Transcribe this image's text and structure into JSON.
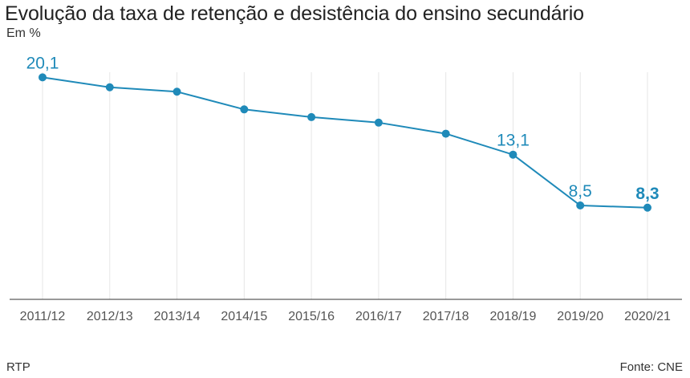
{
  "header": {
    "title": "Evolução da taxa de retenção e desistência do ensino secundário",
    "subtitle": "Em %"
  },
  "footer": {
    "left": "RTP",
    "right": "Fonte: CNE"
  },
  "colors": {
    "line": "#1f8ab9",
    "grid": "#e6e6e6",
    "axis": "#333333"
  },
  "chart_data": {
    "type": "line",
    "title": "Evolução da taxa de retenção e desistência do ensino secundário",
    "subtitle": "Em %",
    "categories": [
      "2011/12",
      "2012/13",
      "2013/14",
      "2014/15",
      "2015/16",
      "2016/17",
      "2017/18",
      "2018/19",
      "2019/20",
      "2020/21"
    ],
    "series": [
      {
        "values": [
          20.1,
          19.2,
          18.8,
          17.2,
          16.5,
          16.0,
          15.0,
          13.1,
          8.5,
          8.3
        ]
      }
    ],
    "labels": [
      {
        "index": 0,
        "text": "20,1"
      },
      {
        "index": 7,
        "text": "13,1"
      },
      {
        "index": 8,
        "text": "8,5"
      },
      {
        "index": 9,
        "text": "8,3"
      }
    ],
    "ylim": [
      0,
      21
    ],
    "grid": "vertical",
    "source": "Fonte: CNE"
  }
}
